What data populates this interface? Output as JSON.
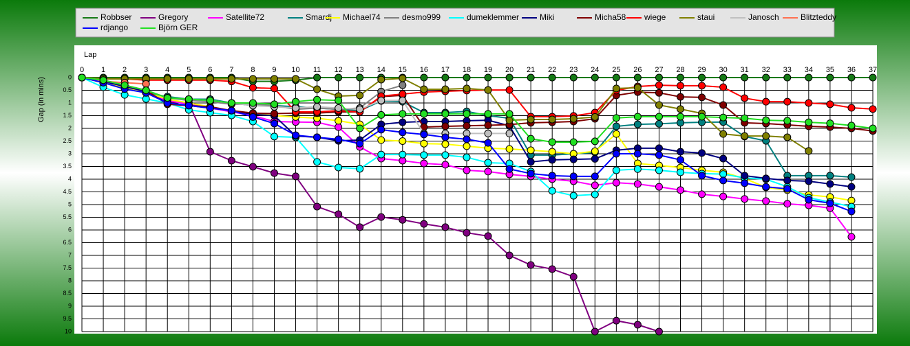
{
  "chart_data": {
    "type": "line",
    "x_label": "Lap",
    "y_label": "Gap (in mins)",
    "x": [
      0,
      1,
      2,
      3,
      4,
      5,
      6,
      7,
      8,
      9,
      10,
      11,
      12,
      13,
      14,
      15,
      16,
      17,
      18,
      19,
      20,
      21,
      22,
      23,
      24,
      25,
      26,
      27,
      28,
      29,
      30,
      31,
      32,
      33,
      34,
      35,
      36,
      37
    ],
    "xlim": [
      0,
      37
    ],
    "xticks": [
      0,
      1,
      2,
      3,
      4,
      5,
      6,
      7,
      8,
      9,
      10,
      11,
      12,
      13,
      14,
      15,
      16,
      17,
      18,
      19,
      20,
      21,
      22,
      23,
      24,
      25,
      26,
      27,
      28,
      29,
      30,
      31,
      32,
      33,
      34,
      35,
      36,
      37
    ],
    "ylim": [
      0,
      10
    ],
    "y_inverted": true,
    "yticks": [
      0,
      0.5,
      1,
      1.5,
      2,
      2.5,
      3,
      3.5,
      4,
      4.5,
      5,
      5.5,
      6,
      6.5,
      7,
      7.5,
      8,
      8.5,
      9,
      9.5,
      10
    ],
    "grid": true,
    "series": [
      {
        "name": "Robbser",
        "color": "#157a15",
        "values": [
          0,
          0,
          0,
          0,
          0,
          0,
          0,
          0,
          0.15,
          0.15,
          0.1,
          0,
          0,
          0,
          0,
          0,
          0,
          0,
          0,
          0,
          0,
          0,
          0,
          0,
          0,
          0,
          0,
          0,
          0,
          0,
          0,
          0,
          0,
          0,
          0,
          0,
          0,
          0
        ]
      },
      {
        "name": "Gregory",
        "color": "#800080",
        "values": [
          0,
          0.2,
          0.4,
          0.6,
          0.95,
          1.0,
          2.92,
          3.27,
          3.51,
          3.76,
          3.89,
          5.08,
          5.38,
          5.89,
          5.49,
          5.6,
          5.76,
          5.89,
          6.11,
          6.24,
          7.0,
          7.38,
          7.54,
          7.84,
          10,
          9.57,
          9.73,
          10,
          null,
          null,
          null,
          null,
          null,
          null,
          null,
          null,
          null,
          null
        ]
      },
      {
        "name": "Satellite72",
        "color": "#ff00ff",
        "values": [
          0,
          0.2,
          0.4,
          0.6,
          0.9,
          1.05,
          1.2,
          1.35,
          1.5,
          1.73,
          1.75,
          1.76,
          1.95,
          2.73,
          3.19,
          3.27,
          3.38,
          3.43,
          3.65,
          3.7,
          3.81,
          3.89,
          4.0,
          4.08,
          4.24,
          4.14,
          4.19,
          4.3,
          4.43,
          4.59,
          4.68,
          4.78,
          4.86,
          4.97,
          5.03,
          5.14,
          6.27,
          null
        ]
      },
      {
        "name": "Smardj",
        "color": "#008080",
        "values": [
          0,
          0.2,
          0.4,
          0.6,
          0.75,
          0.85,
          0.85,
          1.0,
          1.1,
          1.1,
          1.15,
          1.2,
          1.25,
          1.3,
          0.92,
          0.95,
          1.38,
          1.38,
          1.33,
          1.5,
          1.6,
          3.05,
          3.05,
          3.0,
          2.95,
          1.92,
          1.84,
          1.82,
          1.78,
          1.76,
          1.75,
          2.32,
          2.49,
          3.86,
          3.86,
          3.86,
          3.92,
          null
        ]
      },
      {
        "name": "Michael74",
        "color": "#ffff00",
        "values": [
          0,
          0.2,
          0.4,
          0.6,
          0.85,
          1.0,
          1.15,
          1.3,
          1.4,
          1.5,
          1.55,
          1.6,
          1.7,
          1.84,
          2.46,
          2.5,
          2.6,
          2.62,
          2.7,
          2.78,
          2.81,
          2.86,
          2.92,
          3.0,
          2.9,
          2.22,
          3.38,
          3.46,
          3.54,
          3.65,
          3.73,
          3.97,
          4.32,
          4.43,
          4.62,
          4.7,
          4.84,
          null
        ]
      },
      {
        "name": "desmo999",
        "color": "#808080",
        "values": [
          0,
          0.1,
          0.3,
          0.5,
          0.8,
          0.9,
          0.95,
          1.05,
          1.05,
          1.1,
          1.25,
          1.2,
          1.25,
          1.2,
          0.55,
          0.3,
          null,
          null,
          null,
          null,
          null,
          null,
          null,
          null,
          null,
          null,
          null,
          null,
          null,
          null,
          null,
          null,
          null,
          null,
          null,
          null,
          null,
          null
        ]
      },
      {
        "name": "dumeklemmer",
        "color": "#00ffff",
        "values": [
          0,
          0.38,
          0.68,
          0.84,
          1.0,
          1.27,
          1.38,
          1.49,
          1.73,
          2.32,
          2.35,
          3.32,
          3.54,
          3.59,
          3.03,
          3.03,
          3.05,
          3.05,
          3.14,
          3.35,
          3.38,
          3.7,
          4.46,
          4.65,
          4.6,
          3.65,
          3.6,
          3.65,
          3.73,
          3.78,
          3.8,
          3.95,
          4.0,
          4.3,
          4.73,
          4.9,
          5.08,
          null
        ]
      },
      {
        "name": "Miki",
        "color": "#000080",
        "values": [
          0,
          0.15,
          0.35,
          0.55,
          1.0,
          1.1,
          1.2,
          1.3,
          1.45,
          1.5,
          2.3,
          2.35,
          2.49,
          2.46,
          1.84,
          1.76,
          1.73,
          1.73,
          1.7,
          1.68,
          1.9,
          3.32,
          3.24,
          3.22,
          3.2,
          2.86,
          2.78,
          2.78,
          2.92,
          2.97,
          3.19,
          3.86,
          3.97,
          4.05,
          4.08,
          4.19,
          4.3,
          null
        ]
      },
      {
        "name": "Micha58",
        "color": "#800000",
        "values": [
          0,
          0.1,
          0.3,
          0.5,
          1.05,
          1.1,
          1.15,
          1.3,
          1.4,
          1.42,
          1.4,
          1.4,
          1.35,
          1.35,
          0.75,
          0.7,
          1.95,
          1.92,
          1.9,
          1.88,
          1.85,
          1.78,
          1.76,
          1.73,
          1.62,
          0.7,
          0.57,
          0.6,
          0.76,
          0.78,
          1.08,
          1.78,
          1.81,
          1.86,
          1.92,
          1.95,
          2.0,
          2.1
        ]
      },
      {
        "name": "wiege",
        "color": "#ff0000",
        "values": [
          0,
          0.05,
          0.05,
          0.1,
          0.1,
          0.1,
          0.1,
          0.15,
          0.4,
          0.43,
          1.35,
          1.35,
          1.3,
          1.35,
          0.73,
          0.65,
          0.57,
          0.54,
          0.51,
          0.49,
          0.49,
          1.54,
          1.54,
          1.51,
          1.38,
          0.51,
          0.35,
          0.3,
          0.32,
          0.32,
          0.38,
          0.81,
          0.95,
          0.95,
          1.0,
          1.05,
          1.19,
          1.24
        ]
      },
      {
        "name": "staui",
        "color": "#808000",
        "values": [
          0,
          0.05,
          0.05,
          0.05,
          0.05,
          0.05,
          0.05,
          0.05,
          0.05,
          0.05,
          0.05,
          0.46,
          0.73,
          0.7,
          0.08,
          0.03,
          0.46,
          0.46,
          0.43,
          0.49,
          1.68,
          1.65,
          1.65,
          1.62,
          1.55,
          0.43,
          0.4,
          1.08,
          1.24,
          1.41,
          2.22,
          2.3,
          2.3,
          2.35,
          2.89,
          null,
          null,
          null
        ]
      },
      {
        "name": "Janosch",
        "color": "#c0c0c0",
        "values": [
          0,
          0.1,
          0.3,
          0.5,
          0.8,
          0.85,
          0.9,
          1.0,
          1.1,
          1.15,
          1.2,
          1.15,
          1.2,
          1.25,
          0.9,
          0.9,
          2.2,
          2.2,
          2.2,
          2.2,
          2.2,
          null,
          null,
          null,
          null,
          null,
          null,
          null,
          null,
          null,
          null,
          null,
          null,
          null,
          null,
          null,
          null,
          null
        ]
      },
      {
        "name": "Blitzteddy",
        "color": "#ff7050",
        "values": [
          0,
          0.15,
          0.2,
          0.25,
          null,
          null,
          null,
          null,
          null,
          null,
          null,
          null,
          null,
          null,
          null,
          null,
          null,
          null,
          null,
          null,
          null,
          null,
          null,
          null,
          null,
          null,
          null,
          null,
          null,
          null,
          null,
          null,
          null,
          null,
          null,
          null,
          null,
          null
        ]
      },
      {
        "name": "rdjango",
        "color": "#0000ff",
        "values": [
          0,
          0.2,
          0.45,
          0.6,
          1.0,
          1.1,
          1.2,
          1.3,
          1.55,
          1.81,
          2.27,
          2.35,
          2.43,
          2.6,
          2.05,
          2.16,
          2.24,
          2.35,
          2.43,
          2.57,
          3.6,
          3.78,
          3.86,
          3.89,
          3.89,
          3.0,
          3.0,
          3.05,
          3.24,
          3.86,
          4.05,
          4.16,
          4.3,
          4.38,
          4.81,
          4.95,
          5.27,
          null
        ]
      },
      {
        "name": "Björn GER",
        "color": "#22e022",
        "values": [
          0,
          0.1,
          0.3,
          0.5,
          0.8,
          0.85,
          0.9,
          1.0,
          1.0,
          1.05,
          0.95,
          0.87,
          0.9,
          2.0,
          1.47,
          1.43,
          1.43,
          1.43,
          1.43,
          1.43,
          1.43,
          2.41,
          2.54,
          2.54,
          2.51,
          1.59,
          1.54,
          1.54,
          1.54,
          1.54,
          1.57,
          1.6,
          1.68,
          1.7,
          1.76,
          1.8,
          1.89,
          2.0
        ]
      }
    ]
  }
}
